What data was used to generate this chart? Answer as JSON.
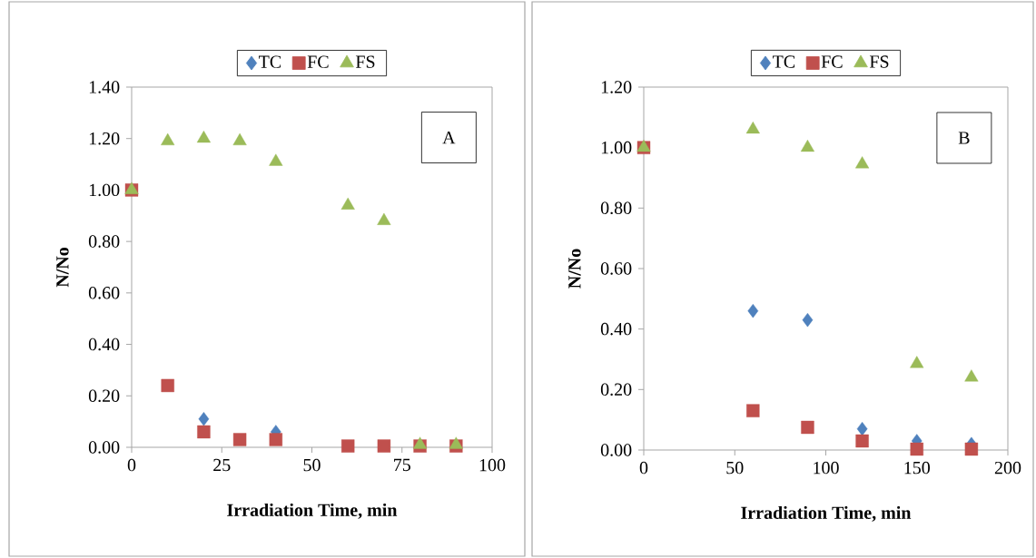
{
  "chart_data": [
    {
      "type": "scatter",
      "xlabel": "Irradiation Time, min",
      "ylabel": "N/No",
      "annotations": [
        "A"
      ],
      "legend": "top",
      "grid": false,
      "x": [
        0,
        10,
        20,
        30,
        40,
        60,
        70,
        80,
        90
      ],
      "series": [
        {
          "name": "TC",
          "color": "#4f81bd",
          "marker": "diamond",
          "values": [
            null,
            null,
            0.11,
            null,
            0.06,
            null,
            null,
            null,
            null
          ]
        },
        {
          "name": "FC",
          "color": "#c0504d",
          "marker": "square",
          "values": [
            1.0,
            0.24,
            0.06,
            0.03,
            0.03,
            0.005,
            0.005,
            0.005,
            0.005
          ]
        },
        {
          "name": "FS",
          "color": "#9bbb59",
          "marker": "triangle",
          "values": [
            1.0,
            1.19,
            1.2,
            1.19,
            1.11,
            0.94,
            0.88,
            0.01,
            0.01
          ]
        }
      ],
      "xlim": [
        0,
        100
      ],
      "xticks": [
        0,
        25,
        50,
        75,
        100
      ],
      "ylim": [
        0,
        1.4
      ],
      "yticks": [
        {
          "value": 0,
          "label": "0.00"
        },
        {
          "value": 0.2,
          "label": "0.20"
        },
        {
          "value": 0.4,
          "label": "0.40"
        },
        {
          "value": 0.6,
          "label": "0.60"
        },
        {
          "value": 0.8,
          "label": "0.80"
        },
        {
          "value": 1.0,
          "label": "1.00"
        },
        {
          "value": 1.2,
          "label": "1.20"
        },
        {
          "value": 1.4,
          "label": "1.40"
        }
      ]
    },
    {
      "type": "scatter",
      "xlabel": "Irradiation Time, min",
      "ylabel": "N/No",
      "annotations": [
        "B"
      ],
      "legend": "top",
      "grid": false,
      "x": [
        0,
        60,
        90,
        120,
        150,
        180
      ],
      "series": [
        {
          "name": "TC",
          "color": "#4f81bd",
          "marker": "diamond",
          "values": [
            null,
            0.46,
            0.43,
            0.07,
            0.03,
            0.02
          ]
        },
        {
          "name": "FC",
          "color": "#c0504d",
          "marker": "square",
          "values": [
            1.0,
            0.13,
            0.075,
            0.03,
            0.003,
            0.003
          ]
        },
        {
          "name": "FS",
          "color": "#9bbb59",
          "marker": "triangle",
          "values": [
            1.0,
            1.06,
            1.0,
            0.945,
            0.285,
            0.24
          ]
        }
      ],
      "xlim": [
        0,
        200
      ],
      "xticks": [
        0,
        50,
        100,
        150,
        200
      ],
      "ylim": [
        0,
        1.2
      ],
      "yticks": [
        {
          "value": 0,
          "label": "0.00"
        },
        {
          "value": 0.2,
          "label": "0.20"
        },
        {
          "value": 0.4,
          "label": "0.40"
        },
        {
          "value": 0.6,
          "label": "0.60"
        },
        {
          "value": 0.8,
          "label": "0.80"
        },
        {
          "value": 1.0,
          "label": "1.00"
        },
        {
          "value": 1.2,
          "label": "1.20"
        }
      ]
    }
  ]
}
